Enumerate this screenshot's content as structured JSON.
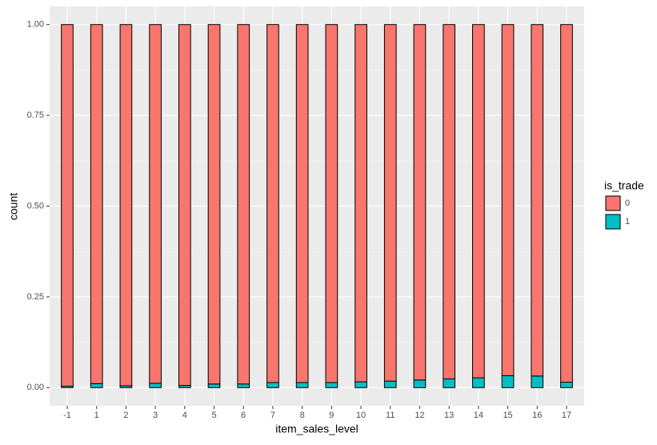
{
  "chart_data": {
    "type": "stacked_bar",
    "x_label": "item_sales_level",
    "y_label": "count",
    "categories": [
      "-1",
      "1",
      "2",
      "3",
      "4",
      "5",
      "6",
      "7",
      "8",
      "9",
      "10",
      "11",
      "12",
      "13",
      "14",
      "15",
      "16",
      "17"
    ],
    "series": [
      {
        "name": "1",
        "color": "#00bfc4",
        "values": [
          0.004,
          0.011,
          0.005,
          0.012,
          0.006,
          0.01,
          0.01,
          0.014,
          0.014,
          0.014,
          0.016,
          0.018,
          0.021,
          0.024,
          0.027,
          0.033,
          0.032,
          0.015
        ]
      },
      {
        "name": "0",
        "color": "#f8766d",
        "values": [
          0.996,
          0.989,
          0.995,
          0.988,
          0.994,
          0.99,
          0.99,
          0.986,
          0.986,
          0.986,
          0.984,
          0.982,
          0.979,
          0.976,
          0.973,
          0.967,
          0.968,
          0.985
        ]
      }
    ],
    "legend_title": "is_trade",
    "ylim": [
      -0.05,
      1.05
    ],
    "yticks": [
      {
        "value": 0,
        "label": "0.00"
      },
      {
        "value": 0.25,
        "label": "0.25"
      },
      {
        "value": 0.5,
        "label": "0.50"
      },
      {
        "value": 0.75,
        "label": "0.75"
      },
      {
        "value": 1,
        "label": "1.00"
      }
    ],
    "grid": true
  }
}
